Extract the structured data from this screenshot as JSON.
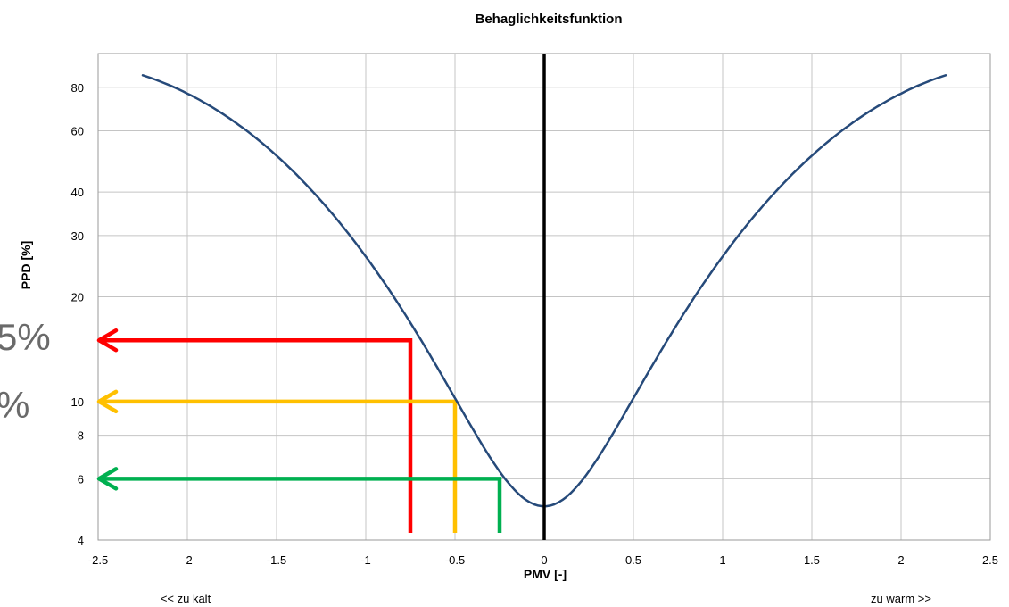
{
  "chart_data": {
    "type": "line",
    "title": "Behaglichkeitsfunktion",
    "xlabel": "PMV [-]",
    "ylabel": "PPD [%]",
    "xlim": [
      -2.5,
      2.5
    ],
    "ylim": [
      4,
      100
    ],
    "y_scale": "log",
    "grid": true,
    "x_ticks": [
      -2.5,
      -2,
      -1.5,
      -1,
      -0.5,
      0,
      0.5,
      1,
      1.5,
      2,
      2.5
    ],
    "x_tick_labels": [
      "-2.5",
      "-2",
      "-1.5",
      "-1",
      "-0.5",
      "0",
      "0.5",
      "1",
      "1.5",
      "2",
      "2.5"
    ],
    "y_ticks": [
      4,
      6,
      8,
      10,
      20,
      30,
      40,
      60,
      80
    ],
    "y_tick_labels": [
      "4",
      "6",
      "8",
      "10",
      "20",
      "30",
      "40",
      "60",
      "80"
    ],
    "x_annotations": {
      "left": "<< zu kalt",
      "right": "zu warm >>"
    },
    "series": [
      {
        "color": "#264a7a",
        "x": [
          -2.25,
          -2.0,
          -1.75,
          -1.5,
          -1.25,
          -1.0,
          -0.75,
          -0.5,
          -0.25,
          0,
          0.25,
          0.5,
          0.75,
          1.0,
          1.25,
          1.5,
          1.75,
          2.0,
          2.25
        ],
        "y": [
          87,
          77,
          64,
          51,
          38,
          26,
          17,
          10,
          6.3,
          5,
          6.3,
          10,
          17,
          26,
          38,
          51,
          64,
          77,
          87
        ]
      }
    ],
    "reference_lines": [
      {
        "color": "#ff0000",
        "pmv": -0.75,
        "ppd": 15
      },
      {
        "color": "#ffc000",
        "pmv": -0.5,
        "ppd": 10
      },
      {
        "color": "#00b050",
        "pmv": -0.25,
        "ppd": 6
      }
    ],
    "vertical_marker": {
      "x": 0,
      "color": "#000000"
    },
    "side_labels": [
      "5%",
      "%"
    ]
  }
}
